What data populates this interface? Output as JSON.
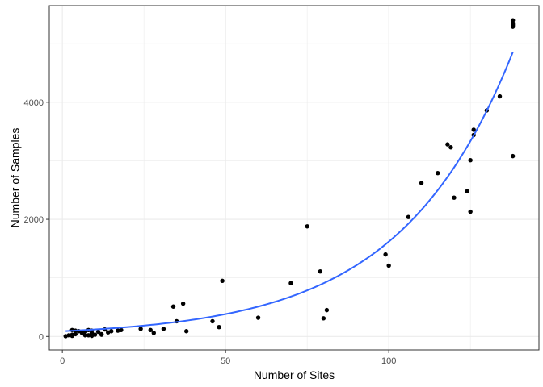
{
  "chart_data": {
    "type": "scatter",
    "title": "",
    "xlabel": "Number of Sites",
    "ylabel": "Number of Samples",
    "xlim": [
      -4,
      146
    ],
    "ylim": [
      -230,
      5650
    ],
    "xticks": [
      0,
      50,
      100
    ],
    "xtick_labels": [
      "0",
      "50",
      "100"
    ],
    "xminor": [
      25,
      75,
      125
    ],
    "yticks": [
      0,
      2000,
      4000
    ],
    "ytick_labels": [
      "0",
      "2000",
      "4000"
    ],
    "yminor": [
      1000,
      3000,
      5000
    ],
    "grid": true,
    "legend": "none",
    "colors": {
      "points": "#000000",
      "trend": "#3366ff",
      "grid": "#ebebeb",
      "border": "#333333"
    },
    "points": [
      [
        1,
        5
      ],
      [
        2,
        20
      ],
      [
        3,
        10
      ],
      [
        3,
        30
      ],
      [
        3,
        110
      ],
      [
        4,
        40
      ],
      [
        4,
        100
      ],
      [
        5,
        90
      ],
      [
        6,
        60
      ],
      [
        7,
        80
      ],
      [
        7,
        20
      ],
      [
        8,
        110
      ],
      [
        8,
        20
      ],
      [
        9,
        100
      ],
      [
        9,
        60
      ],
      [
        9,
        10
      ],
      [
        10,
        30
      ],
      [
        11,
        80
      ],
      [
        12,
        40
      ],
      [
        12,
        30
      ],
      [
        13,
        120
      ],
      [
        14,
        70
      ],
      [
        15,
        90
      ],
      [
        17,
        100
      ],
      [
        18,
        110
      ],
      [
        24,
        130
      ],
      [
        27,
        110
      ],
      [
        28,
        60
      ],
      [
        31,
        130
      ],
      [
        34,
        510
      ],
      [
        35,
        260
      ],
      [
        37,
        560
      ],
      [
        38,
        90
      ],
      [
        46,
        260
      ],
      [
        48,
        160
      ],
      [
        49,
        950
      ],
      [
        60,
        320
      ],
      [
        70,
        910
      ],
      [
        75,
        1880
      ],
      [
        79,
        1110
      ],
      [
        80,
        310
      ],
      [
        81,
        450
      ],
      [
        99,
        1400
      ],
      [
        100,
        1210
      ],
      [
        106,
        2040
      ],
      [
        110,
        2620
      ],
      [
        115,
        2790
      ],
      [
        118,
        3280
      ],
      [
        119,
        3230
      ],
      [
        120,
        2370
      ],
      [
        124,
        2480
      ],
      [
        125,
        3010
      ],
      [
        125,
        2130
      ],
      [
        126,
        3530
      ],
      [
        126,
        3440
      ],
      [
        130,
        3860
      ],
      [
        134,
        4100
      ],
      [
        138,
        5400
      ],
      [
        138,
        5350
      ],
      [
        138,
        5320
      ],
      [
        138,
        5290
      ],
      [
        138,
        3080
      ]
    ],
    "trend": {
      "type": "exponential",
      "a": 90.0,
      "b": 0.0289,
      "x_from": 1,
      "x_to": 138
    }
  }
}
